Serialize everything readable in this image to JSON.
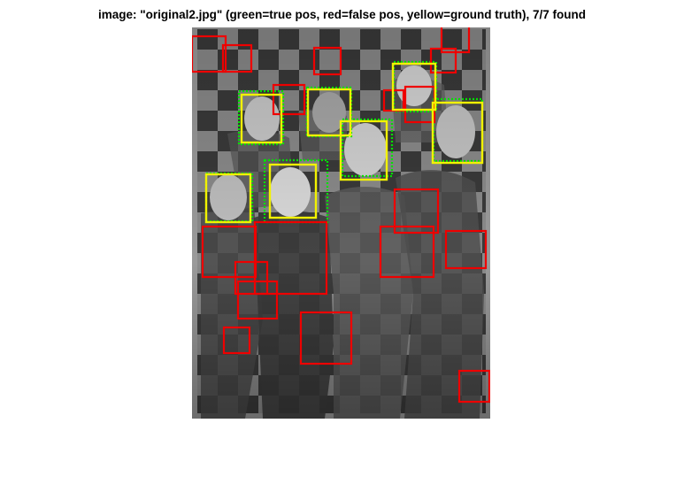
{
  "title": "image: \"original2.jpg\" (green=true pos, red=false pos, yellow=ground truth), 7/7 found",
  "legend_colors": {
    "true_positive": "#00e000",
    "false_positive": "#ee0000",
    "ground_truth": "#f2f200"
  },
  "detections": {
    "found": 7,
    "total": 7
  }
}
